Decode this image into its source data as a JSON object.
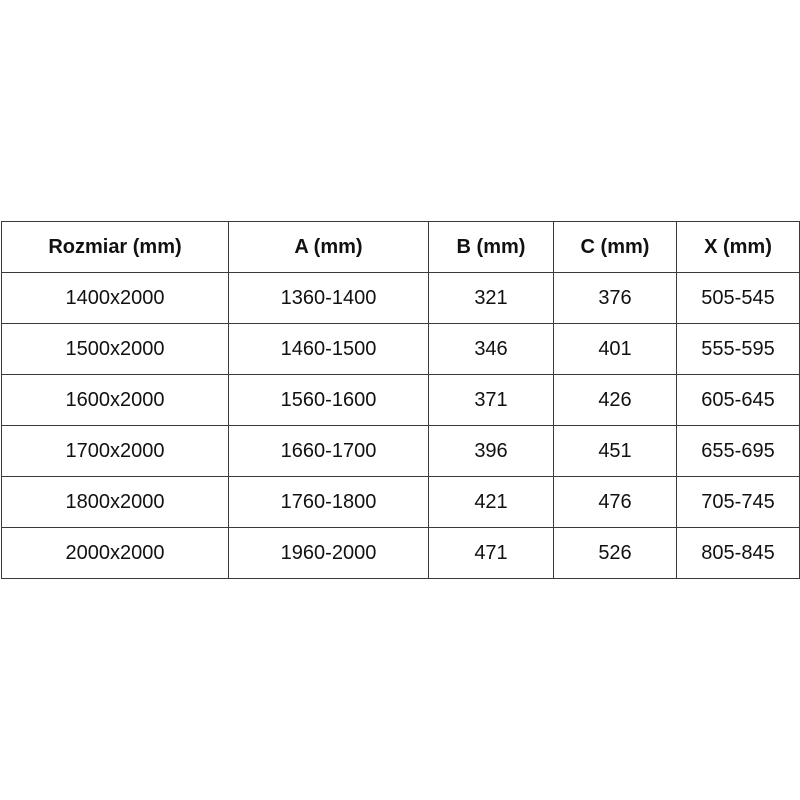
{
  "table": {
    "headers": [
      "Rozmiar (mm)",
      "A (mm)",
      "B (mm)",
      "C (mm)",
      "X (mm)"
    ],
    "rows": [
      [
        "1400x2000",
        "1360-1400",
        "321",
        "376",
        "505-545"
      ],
      [
        "1500x2000",
        "1460-1500",
        "346",
        "401",
        "555-595"
      ],
      [
        "1600x2000",
        "1560-1600",
        "371",
        "426",
        "605-645"
      ],
      [
        "1700x2000",
        "1660-1700",
        "396",
        "451",
        "655-695"
      ],
      [
        "1800x2000",
        "1760-1800",
        "421",
        "476",
        "705-745"
      ],
      [
        "2000x2000",
        "1960-2000",
        "471",
        "526",
        "805-845"
      ]
    ]
  }
}
